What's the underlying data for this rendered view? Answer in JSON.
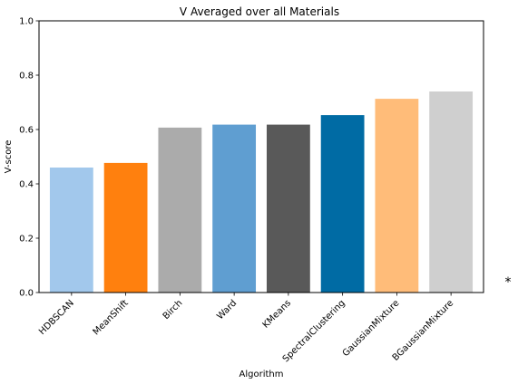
{
  "chart_data": {
    "type": "bar",
    "title": "V Averaged over all Materials",
    "xlabel": "Algorithm",
    "ylabel": "V-score",
    "ylim": [
      0,
      1.0
    ],
    "yticks": [
      "0.0",
      "0.2",
      "0.4",
      "0.6",
      "0.8",
      "1.0"
    ],
    "categories": [
      "HDBSCAN",
      "MeanShift",
      "Birch",
      "Ward",
      "KMeans",
      "SpectralClustering",
      "GaussianMixture",
      "BGaussianMixture"
    ],
    "values": [
      0.46,
      0.477,
      0.607,
      0.618,
      0.618,
      0.653,
      0.713,
      0.74
    ],
    "colors": [
      "#a2c8ec",
      "#ff800e",
      "#ababab",
      "#5f9ed1",
      "#595959",
      "#006ba4",
      "#ffbc79",
      "#cfcfcf"
    ],
    "grid": false,
    "legend": "none"
  },
  "annotation": "*"
}
